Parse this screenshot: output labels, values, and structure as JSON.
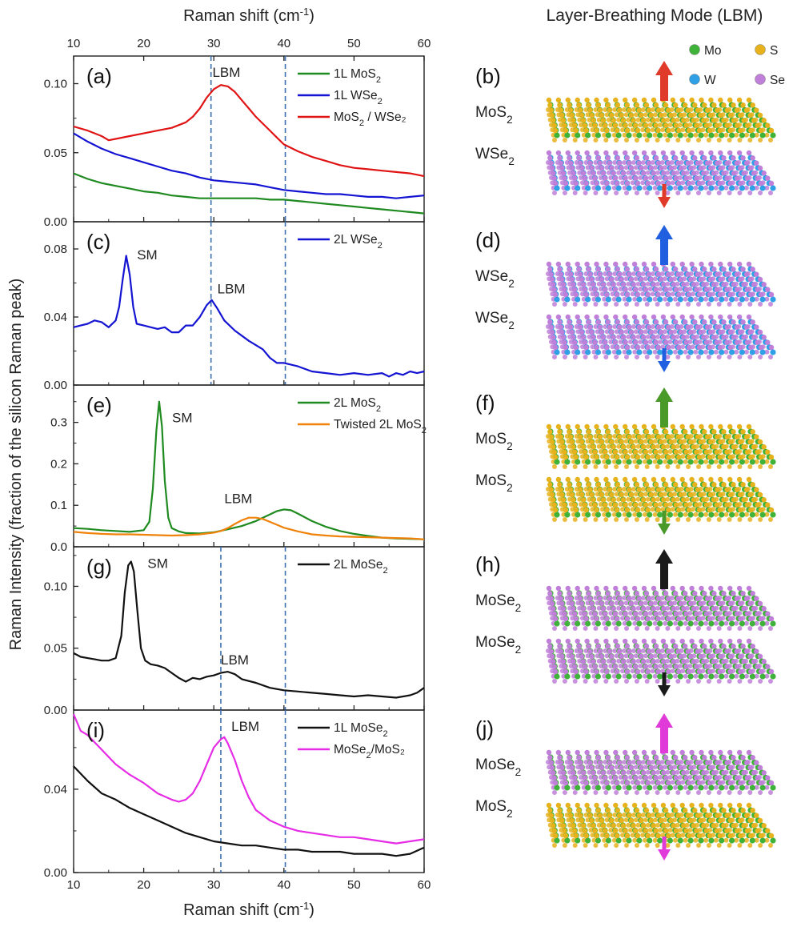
{
  "figure": {
    "top_axis_title": "Raman shift (cm",
    "bottom_axis_title": "Raman shift (cm",
    "axis_title_sup": "-1",
    "axis_title_close": ")",
    "y_axis_title": "Raman Intensity (fraction of the silicon Raman peak)",
    "right_title": "Layer-Breathing Mode (LBM)",
    "atom_legend": [
      {
        "label": "Mo",
        "color": "#3fb23a"
      },
      {
        "label": "S",
        "color": "#e8b21d"
      },
      {
        "label": "W",
        "color": "#2f9fe6"
      },
      {
        "label": "Se",
        "color": "#c07fd8"
      }
    ]
  },
  "chart_data": [
    {
      "type": "line",
      "panel_label": "(a)",
      "xlim": [
        10,
        60
      ],
      "ylim": [
        0,
        0.12
      ],
      "yticks": [
        "0.00",
        "0.05",
        "0.10"
      ],
      "ytick_values": [
        0,
        0.05,
        0.1
      ],
      "xticks": [
        "10",
        "20",
        "30",
        "40",
        "50",
        "60"
      ],
      "xtick_values": [
        10,
        20,
        30,
        40,
        50,
        60
      ],
      "vlines": [
        29.6,
        40.2
      ],
      "annotations": [
        {
          "text": "LBM",
          "x": 31.8,
          "y": 0.105
        }
      ],
      "series": [
        {
          "name": "1L MoS",
          "sub": "2",
          "tail": "",
          "color": "#1f8a1f",
          "x": [
            10,
            12,
            14,
            16,
            18,
            20,
            22,
            24,
            26,
            28,
            30,
            32,
            34,
            36,
            38,
            40,
            42,
            44,
            46,
            48,
            50,
            52,
            54,
            56,
            58,
            60
          ],
          "y": [
            0.035,
            0.031,
            0.028,
            0.026,
            0.024,
            0.022,
            0.021,
            0.019,
            0.018,
            0.017,
            0.017,
            0.017,
            0.017,
            0.017,
            0.016,
            0.016,
            0.015,
            0.014,
            0.013,
            0.012,
            0.011,
            0.01,
            0.009,
            0.008,
            0.007,
            0.006
          ]
        },
        {
          "name": "1L WSe",
          "sub": "2",
          "tail": "",
          "color": "#1414d2",
          "x": [
            10,
            12,
            14,
            16,
            18,
            20,
            22,
            24,
            26,
            28,
            30,
            32,
            34,
            36,
            38,
            40,
            42,
            44,
            46,
            48,
            50,
            52,
            54,
            56,
            58,
            60
          ],
          "y": [
            0.064,
            0.058,
            0.053,
            0.049,
            0.046,
            0.043,
            0.04,
            0.037,
            0.035,
            0.032,
            0.03,
            0.029,
            0.028,
            0.027,
            0.025,
            0.023,
            0.022,
            0.021,
            0.02,
            0.02,
            0.019,
            0.018,
            0.018,
            0.017,
            0.018,
            0.019
          ]
        },
        {
          "name": "MoS",
          "sub": "2",
          "tail": " / WSe₂",
          "color": "#e01414",
          "x": [
            10,
            12,
            14,
            15,
            16,
            18,
            20,
            22,
            24,
            26,
            27,
            28,
            29,
            30,
            31,
            32,
            33,
            34,
            35,
            36,
            37,
            38,
            39,
            40,
            42,
            44,
            46,
            48,
            50,
            52,
            54,
            56,
            58,
            60
          ],
          "y": [
            0.069,
            0.066,
            0.062,
            0.059,
            0.06,
            0.062,
            0.064,
            0.066,
            0.068,
            0.072,
            0.076,
            0.082,
            0.09,
            0.096,
            0.099,
            0.098,
            0.094,
            0.088,
            0.082,
            0.076,
            0.071,
            0.066,
            0.061,
            0.056,
            0.051,
            0.047,
            0.044,
            0.041,
            0.039,
            0.038,
            0.037,
            0.036,
            0.035,
            0.033
          ]
        }
      ]
    },
    {
      "type": "line",
      "panel_label": "(c)",
      "xlim": [
        10,
        60
      ],
      "ylim": [
        0,
        0.096
      ],
      "yticks": [
        "0.00",
        "0.04",
        "0.08"
      ],
      "ytick_values": [
        0,
        0.04,
        0.08
      ],
      "xticks": [
        "10",
        "20",
        "30",
        "40",
        "50",
        "60"
      ],
      "xtick_values": [
        10,
        20,
        30,
        40,
        50,
        60
      ],
      "vlines": [
        29.6,
        40.2
      ],
      "annotations": [
        {
          "text": "SM",
          "x": 20.5,
          "y": 0.074
        },
        {
          "text": "LBM",
          "x": 32.5,
          "y": 0.054
        }
      ],
      "series": [
        {
          "name": "2L WSe",
          "sub": "2",
          "tail": "",
          "color": "#1414d2",
          "x": [
            10,
            11,
            12,
            13,
            14,
            15,
            16,
            16.5,
            17,
            17.5,
            18,
            18.5,
            19,
            20,
            21,
            22,
            23,
            24,
            25,
            26,
            27,
            28,
            29,
            29.7,
            30.5,
            31.5,
            33,
            35,
            37,
            38,
            39,
            40,
            42,
            44,
            46,
            48,
            50,
            52,
            54,
            55,
            56,
            57,
            58,
            59,
            60
          ],
          "y": [
            0.034,
            0.035,
            0.036,
            0.038,
            0.037,
            0.034,
            0.038,
            0.046,
            0.062,
            0.076,
            0.065,
            0.046,
            0.036,
            0.035,
            0.034,
            0.033,
            0.034,
            0.031,
            0.031,
            0.035,
            0.035,
            0.04,
            0.047,
            0.05,
            0.045,
            0.038,
            0.032,
            0.026,
            0.021,
            0.016,
            0.013,
            0.013,
            0.011,
            0.008,
            0.007,
            0.006,
            0.007,
            0.006,
            0.007,
            0.005,
            0.007,
            0.006,
            0.008,
            0.007,
            0.008
          ]
        }
      ]
    },
    {
      "type": "line",
      "panel_label": "(e)",
      "xlim": [
        10,
        60
      ],
      "ylim": [
        0,
        0.39
      ],
      "yticks": [
        "0.0",
        "0.1",
        "0.2",
        "0.3"
      ],
      "ytick_values": [
        0,
        0.1,
        0.2,
        0.3
      ],
      "xticks": [
        "10",
        "20",
        "30",
        "40",
        "50",
        "60"
      ],
      "xtick_values": [
        10,
        20,
        30,
        40,
        50,
        60
      ],
      "vlines": [],
      "annotations": [
        {
          "text": "SM",
          "x": 25.5,
          "y": 0.3
        },
        {
          "text": "LBM",
          "x": 33.5,
          "y": 0.105
        }
      ],
      "series": [
        {
          "name": "2L MoS",
          "sub": "2",
          "tail": "",
          "color": "#1f8a1f",
          "x": [
            10,
            12,
            14,
            16,
            18,
            20,
            20.8,
            21.3,
            21.8,
            22.2,
            22.6,
            23,
            23.5,
            24,
            25,
            26,
            28,
            30,
            32,
            34,
            36,
            38,
            39,
            40,
            41,
            42,
            44,
            46,
            48,
            50,
            52,
            54,
            56,
            58,
            60
          ],
          "y": [
            0.045,
            0.043,
            0.04,
            0.038,
            0.036,
            0.04,
            0.06,
            0.14,
            0.28,
            0.35,
            0.29,
            0.16,
            0.07,
            0.045,
            0.037,
            0.033,
            0.032,
            0.035,
            0.042,
            0.05,
            0.062,
            0.078,
            0.086,
            0.09,
            0.088,
            0.08,
            0.062,
            0.048,
            0.038,
            0.031,
            0.026,
            0.022,
            0.02,
            0.019,
            0.018
          ]
        },
        {
          "name": "Twisted 2L MoS",
          "sub": "2",
          "tail": "",
          "color": "#f0820a",
          "x": [
            10,
            12,
            14,
            16,
            18,
            20,
            22,
            24,
            26,
            28,
            30,
            31,
            32,
            33,
            34,
            35,
            36,
            37,
            38,
            39,
            40,
            42,
            44,
            46,
            48,
            50,
            52,
            54,
            56,
            58,
            60
          ],
          "y": [
            0.036,
            0.033,
            0.031,
            0.03,
            0.03,
            0.029,
            0.028,
            0.027,
            0.028,
            0.03,
            0.034,
            0.038,
            0.045,
            0.055,
            0.064,
            0.07,
            0.07,
            0.067,
            0.06,
            0.053,
            0.046,
            0.037,
            0.03,
            0.027,
            0.025,
            0.024,
            0.023,
            0.022,
            0.021,
            0.02,
            0.018
          ]
        }
      ]
    },
    {
      "type": "line",
      "panel_label": "(g)",
      "xlim": [
        10,
        60
      ],
      "ylim": [
        0,
        0.132
      ],
      "yticks": [
        "0.00",
        "0.05",
        "0.10"
      ],
      "ytick_values": [
        0,
        0.05,
        0.1
      ],
      "xticks": [
        "10",
        "20",
        "30",
        "40",
        "50",
        "60"
      ],
      "xtick_values": [
        10,
        20,
        30,
        40,
        50,
        60
      ],
      "vlines": [
        31.0,
        40.2
      ],
      "annotations": [
        {
          "text": "SM",
          "x": 22.0,
          "y": 0.115
        },
        {
          "text": "LBM",
          "x": 33.0,
          "y": 0.037
        }
      ],
      "series": [
        {
          "name": "2L MoSe",
          "sub": "2",
          "tail": "",
          "color": "#111111",
          "x": [
            10,
            11,
            12,
            13,
            14,
            15,
            16,
            16.8,
            17.3,
            17.8,
            18.2,
            18.6,
            19.1,
            19.6,
            20.2,
            21,
            22,
            23,
            24,
            25,
            26,
            27,
            28,
            29,
            30,
            31,
            32,
            33,
            34,
            36,
            38,
            40,
            42,
            44,
            46,
            48,
            50,
            52,
            54,
            56,
            58,
            59,
            60
          ],
          "y": [
            0.046,
            0.043,
            0.042,
            0.041,
            0.04,
            0.04,
            0.042,
            0.06,
            0.095,
            0.117,
            0.12,
            0.112,
            0.08,
            0.05,
            0.04,
            0.037,
            0.036,
            0.034,
            0.03,
            0.026,
            0.023,
            0.026,
            0.025,
            0.027,
            0.028,
            0.03,
            0.031,
            0.029,
            0.025,
            0.022,
            0.018,
            0.016,
            0.015,
            0.014,
            0.013,
            0.012,
            0.011,
            0.012,
            0.011,
            0.01,
            0.012,
            0.014,
            0.018
          ]
        }
      ]
    },
    {
      "type": "line",
      "panel_label": "(i)",
      "xlim": [
        10,
        60
      ],
      "ylim": [
        0,
        0.078
      ],
      "yticks": [
        "0.00",
        "0.04"
      ],
      "ytick_values": [
        0,
        0.04
      ],
      "xticks": [
        "10",
        "20",
        "30",
        "40",
        "50",
        "60"
      ],
      "xtick_values": [
        10,
        20,
        30,
        40,
        50,
        60
      ],
      "vlines": [
        31.0,
        40.2
      ],
      "annotations": [
        {
          "text": "LBM",
          "x": 34.5,
          "y": 0.068
        }
      ],
      "series": [
        {
          "name": "1L MoSe",
          "sub": "2",
          "tail": "",
          "color": "#111111",
          "x": [
            10,
            12,
            14,
            16,
            18,
            20,
            22,
            24,
            26,
            28,
            30,
            32,
            34,
            36,
            38,
            40,
            42,
            44,
            46,
            48,
            50,
            52,
            54,
            56,
            58,
            60
          ],
          "y": [
            0.051,
            0.044,
            0.038,
            0.035,
            0.031,
            0.028,
            0.025,
            0.022,
            0.019,
            0.017,
            0.015,
            0.014,
            0.013,
            0.013,
            0.012,
            0.011,
            0.011,
            0.01,
            0.01,
            0.01,
            0.009,
            0.009,
            0.009,
            0.008,
            0.009,
            0.012
          ]
        },
        {
          "name": "MoSe",
          "sub": "2",
          "tail": "/MoS₂",
          "color": "#e62ce6",
          "x": [
            10,
            11,
            12,
            14,
            16,
            18,
            20,
            22,
            24,
            25,
            26,
            27,
            28,
            29,
            30,
            31,
            31.5,
            32,
            33,
            34,
            35,
            36,
            38,
            40,
            42,
            44,
            46,
            48,
            50,
            52,
            54,
            56,
            58,
            60
          ],
          "y": [
            0.076,
            0.068,
            0.066,
            0.059,
            0.052,
            0.047,
            0.043,
            0.038,
            0.035,
            0.034,
            0.035,
            0.038,
            0.044,
            0.052,
            0.06,
            0.064,
            0.065,
            0.062,
            0.054,
            0.044,
            0.036,
            0.03,
            0.025,
            0.022,
            0.02,
            0.019,
            0.018,
            0.017,
            0.017,
            0.016,
            0.015,
            0.014,
            0.015,
            0.016
          ]
        }
      ]
    }
  ],
  "schematics": [
    {
      "label": "(b)",
      "top": "MoS",
      "bottom": "WSe",
      "top_metal": "#3fb23a",
      "top_chalc": "#e8b21d",
      "bot_metal": "#2f9fe6",
      "bot_chalc": "#c07fd8",
      "arrow": "#e03a2a"
    },
    {
      "label": "(d)",
      "top": "WSe",
      "bottom": "WSe",
      "top_metal": "#2f9fe6",
      "top_chalc": "#c07fd8",
      "bot_metal": "#2f9fe6",
      "bot_chalc": "#c07fd8",
      "arrow": "#1f5fe0"
    },
    {
      "label": "(f)",
      "top": "MoS",
      "bottom": "MoS",
      "top_metal": "#3fb23a",
      "top_chalc": "#e8b21d",
      "bot_metal": "#3fb23a",
      "bot_chalc": "#e8b21d",
      "arrow": "#4a9a2a"
    },
    {
      "label": "(h)",
      "top": "MoSe",
      "bottom": "MoSe",
      "top_metal": "#3fb23a",
      "top_chalc": "#c07fd8",
      "bot_metal": "#3fb23a",
      "bot_chalc": "#c07fd8",
      "arrow": "#1a1a1a"
    },
    {
      "label": "(j)",
      "top": "MoSe",
      "bottom": "MoS",
      "top_metal": "#3fb23a",
      "top_chalc": "#c07fd8",
      "bot_metal": "#3fb23a",
      "bot_chalc": "#e8b21d",
      "arrow": "#e03ad8"
    }
  ],
  "subscript": "2"
}
